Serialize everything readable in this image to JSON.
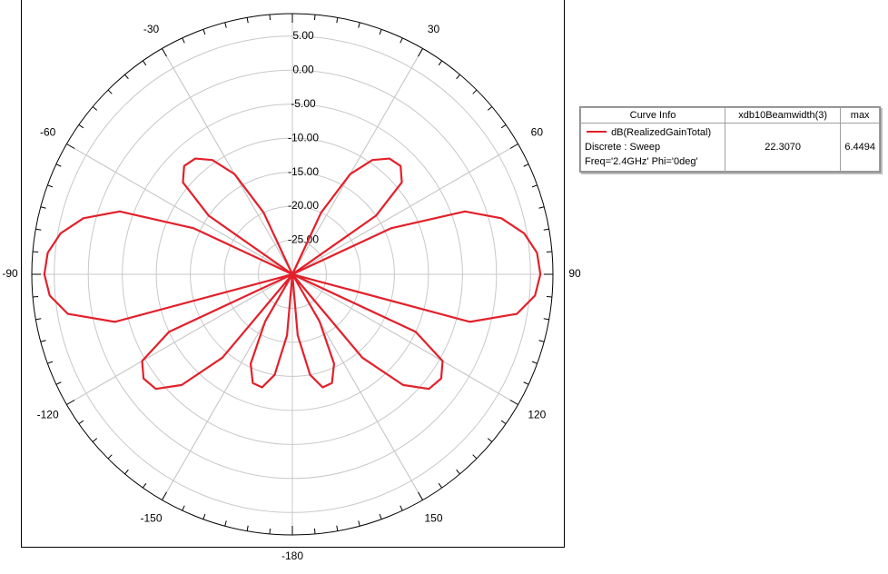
{
  "chart_data": {
    "type": "polar",
    "theta": [
      -180,
      -175,
      -170,
      -165,
      -160,
      -155,
      -150,
      -145,
      -140,
      -135,
      -130,
      -125,
      -120,
      -115,
      -110,
      -105,
      -100,
      -95,
      -90,
      -85,
      -80,
      -75,
      -70,
      -65,
      -60,
      -55,
      -50,
      -45,
      -40,
      -35,
      -30,
      -25,
      -20,
      -15,
      -10,
      -5,
      0,
      5,
      10,
      15,
      20,
      25,
      30,
      35,
      40,
      45,
      50,
      55,
      60,
      65,
      70,
      75,
      80,
      85,
      90,
      95,
      100,
      105,
      110,
      115,
      120,
      125,
      130,
      135,
      140,
      145,
      150,
      155,
      160,
      165,
      170,
      175,
      180
    ],
    "series": [
      {
        "name": "dB(RealizedGainTotal)",
        "color": "#e3202a",
        "values": [
          -30,
          -21,
          -15,
          -12.8,
          -13,
          -15.5,
          -22,
          -30,
          -14,
          -7,
          -3.8,
          -3.3,
          -4.5,
          -10,
          -30,
          -3,
          3.5,
          5.8,
          6.45,
          6.1,
          4.6,
          1.8,
          -3,
          -14,
          -30,
          -15,
          -9,
          -7.5,
          -7.8,
          -9.5,
          -13,
          -20,
          -30,
          -30,
          -30,
          -30,
          -30,
          -30,
          -30,
          -30,
          -30,
          -20,
          -13,
          -9.5,
          -7.8,
          -7.5,
          -9,
          -15,
          -30,
          -14,
          -3,
          1.8,
          4.6,
          6.1,
          6.45,
          5.8,
          3.5,
          -3,
          -30,
          -10,
          -4.5,
          -3.3,
          -3.8,
          -7,
          -14,
          -30,
          -22,
          -15.5,
          -13,
          -12.8,
          -15,
          -21,
          -30
        ]
      }
    ],
    "rlim": [
      -30,
      8.3
    ],
    "rticks": [
      {
        "value": -25,
        "label": "-25.00"
      },
      {
        "value": -20,
        "label": "-20.00"
      },
      {
        "value": -15,
        "label": "-15.00"
      },
      {
        "value": -10,
        "label": "-10.00"
      },
      {
        "value": -5,
        "label": "-5.00"
      },
      {
        "value": 0,
        "label": "0.00"
      },
      {
        "value": 5,
        "label": "5.00"
      }
    ],
    "thetaticks": [
      -180,
      -150,
      -120,
      -90,
      -60,
      -30,
      30,
      60,
      90,
      120,
      150
    ],
    "grid": true,
    "legend_table": {
      "header": [
        "Curve Info",
        "xdb10Beamwidth(3)",
        "max"
      ],
      "row": {
        "info": [
          "dB(RealizedGainTotal)",
          "Discrete : Sweep",
          "Freq='2.4GHz' Phi='0deg'"
        ],
        "beamwidth": "22.3070",
        "max": "6.4494"
      }
    }
  }
}
